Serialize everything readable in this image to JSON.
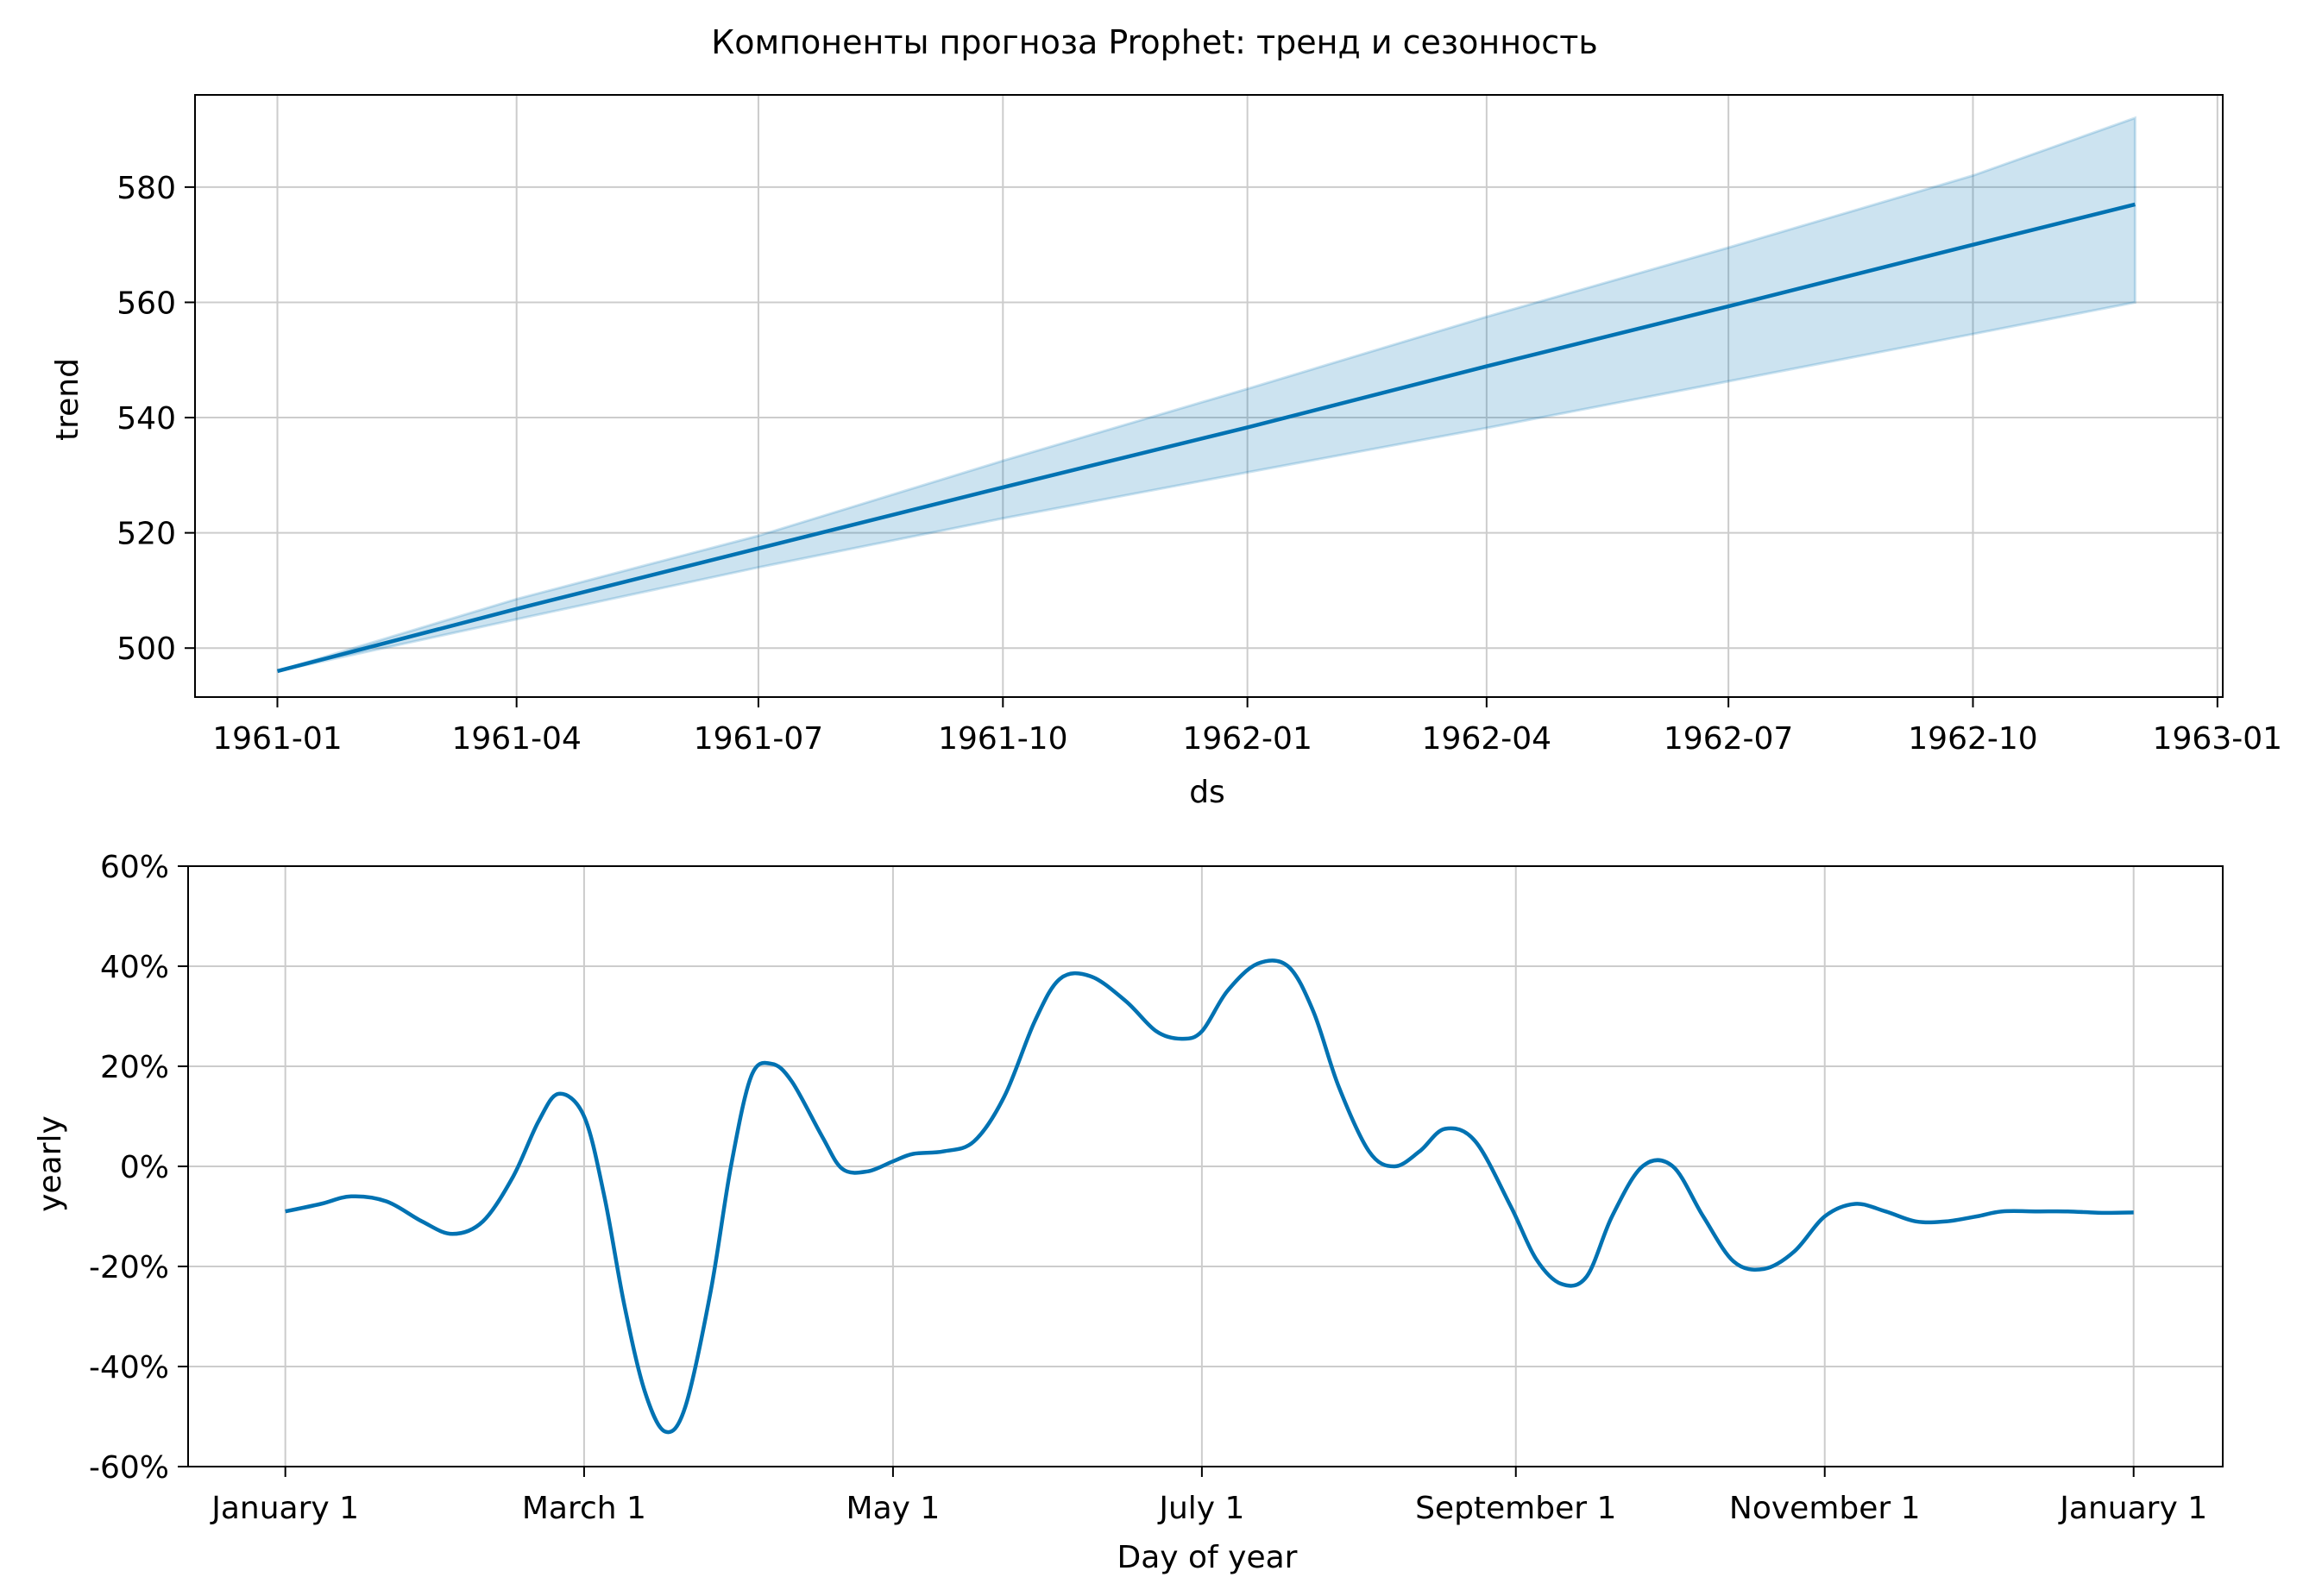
{
  "figure": {
    "title": "Компоненты прогноза Prophet: тренд и сезонность"
  },
  "colors": {
    "line": "#0072b2",
    "band_fill": "#0072b2",
    "grid": "#cccccc",
    "axes": "#000000",
    "background": "#ffffff"
  },
  "chart_data": [
    {
      "type": "line",
      "xlabel": "ds",
      "ylabel": "trend",
      "grid": true,
      "x_ticks": [
        "1961-01",
        "1961-04",
        "1961-07",
        "1961-10",
        "1962-01",
        "1962-04",
        "1962-07",
        "1962-10",
        "1963-01"
      ],
      "y_ticks": [
        500,
        520,
        540,
        560,
        580
      ],
      "xlim": [
        "1960-12-01",
        "1963-01-03"
      ],
      "ylim": [
        491.5,
        596
      ],
      "series": [
        {
          "x": [
            "1961-01-01",
            "1961-04-01",
            "1961-07-01",
            "1961-10-01",
            "1962-01-01",
            "1962-04-01",
            "1962-07-01",
            "1962-10-01",
            "1962-12-01"
          ],
          "y": [
            496,
            506.8,
            517.3,
            527.9,
            538.3,
            548.9,
            559.3,
            570.0,
            577.0
          ],
          "lower": [
            496,
            505.0,
            514.0,
            522.5,
            530.5,
            538.2,
            546.3,
            554.5,
            560.0
          ],
          "upper": [
            496,
            508.5,
            519.5,
            532.5,
            545.0,
            557.5,
            569.5,
            582.0,
            592.0
          ]
        }
      ]
    },
    {
      "type": "line",
      "xlabel": "Day of year",
      "ylabel": "yearly",
      "grid": true,
      "x_ticks": [
        "January 1",
        "March 1",
        "May 1",
        "July 1",
        "September 1",
        "November 1",
        "January 1"
      ],
      "x_tick_days": [
        0,
        59,
        120,
        181,
        243,
        304,
        365
      ],
      "y_ticks": [
        "60%",
        "40%",
        "20%",
        "0%",
        "-20%",
        "-40%",
        "-60%"
      ],
      "xlim": [
        -19.2,
        382.6
      ],
      "ylim": [
        -60,
        60
      ],
      "series": [
        {
          "x": [
            0,
            7,
            13,
            20,
            27,
            33,
            39,
            45,
            50,
            54,
            59,
            63,
            67,
            71,
            75,
            79,
            84,
            88,
            92,
            96,
            100,
            106,
            110,
            115,
            120,
            124,
            130,
            136,
            142,
            148,
            153,
            159,
            166,
            172,
            177,
            181,
            186,
            192,
            198,
            203,
            208,
            214,
            219,
            224,
            229,
            235,
            242,
            247,
            252,
            257,
            262,
            268,
            274,
            280,
            286,
            292,
            298,
            304,
            310,
            316,
            322,
            328,
            334,
            339,
            346,
            352,
            359,
            365
          ],
          "y": [
            -9,
            -7.5,
            -6,
            -7,
            -11,
            -13.5,
            -11,
            -2,
            9,
            14.5,
            10,
            -6,
            -28,
            -45,
            -53,
            -48,
            -25,
            0,
            18,
            20.5,
            17,
            6,
            -0.5,
            -1,
            1,
            2.5,
            3,
            5,
            14,
            29,
            37.5,
            38,
            33,
            27,
            25.5,
            27,
            35,
            40.5,
            40,
            31,
            16,
            3,
            0,
            3,
            7.5,
            5,
            -8,
            -18.5,
            -23.5,
            -22,
            -10,
            0,
            0,
            -10,
            -19,
            -20.5,
            -17,
            -10,
            -7.5,
            -9,
            -11,
            -11,
            -10,
            -9,
            -9,
            -9,
            -9.3,
            -9.2
          ]
        }
      ]
    }
  ]
}
